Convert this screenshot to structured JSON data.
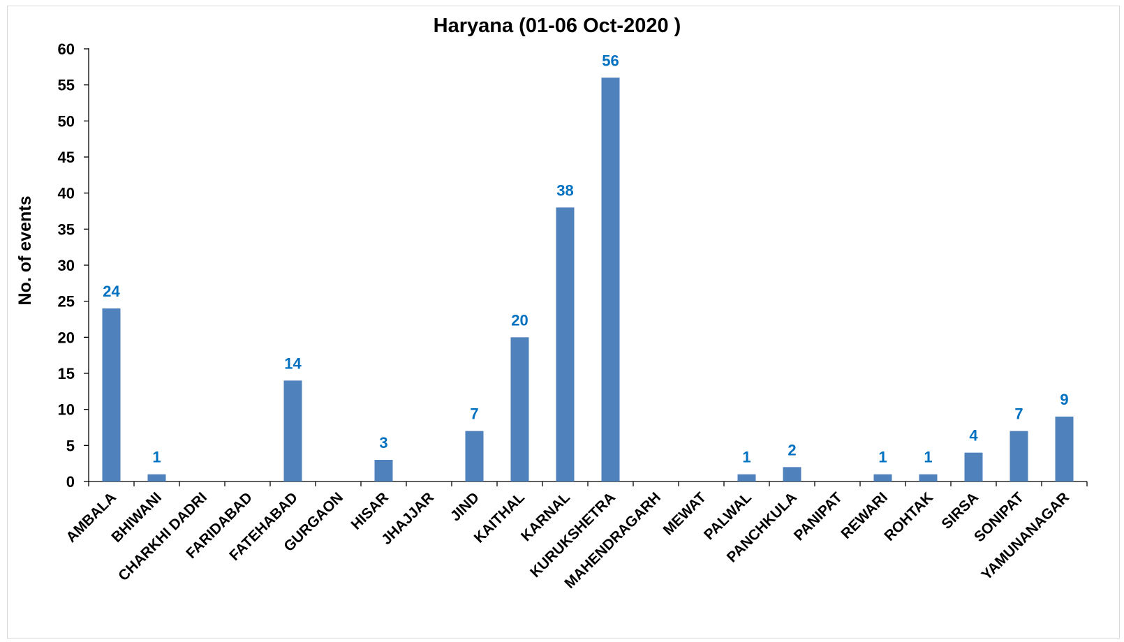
{
  "chart_data": {
    "type": "bar",
    "title": "Haryana (01-06 Oct-2020 )",
    "xlabel": "",
    "ylabel": "No. of events",
    "ylim": [
      0,
      60
    ],
    "yticks": [
      0,
      5,
      10,
      15,
      20,
      25,
      30,
      35,
      40,
      45,
      50,
      55,
      60
    ],
    "grid": false,
    "legend": "none",
    "categories": [
      "AMBALA",
      "BHIWANI",
      "CHARKHI DADRI",
      "FARIDABAD",
      "FATEHABAD",
      "GURGAON",
      "HISAR",
      "JHAJJAR",
      "JIND",
      "KAITHAL",
      "KARNAL",
      "KURUKSHETRA",
      "MAHENDRAGARH",
      "MEWAT",
      "PALWAL",
      "PANCHKULA",
      "PANIPAT",
      "REWARI",
      "ROHTAK",
      "SIRSA",
      "SONIPAT",
      "YAMUNANAGAR"
    ],
    "values": [
      24,
      1,
      0,
      0,
      14,
      0,
      3,
      0,
      7,
      20,
      38,
      56,
      0,
      0,
      1,
      2,
      0,
      1,
      1,
      4,
      7,
      9
    ],
    "data_labels": [
      "24",
      "1",
      "",
      "",
      "14",
      "",
      "3",
      "",
      "7",
      "20",
      "38",
      "56",
      "",
      "",
      "1",
      "2",
      "",
      "1",
      "1",
      "4",
      "7",
      "9"
    ],
    "colors": {
      "bar": "#4f81bd",
      "data_label": "#0070c0",
      "axis": "#000000",
      "text": "#000000"
    }
  }
}
